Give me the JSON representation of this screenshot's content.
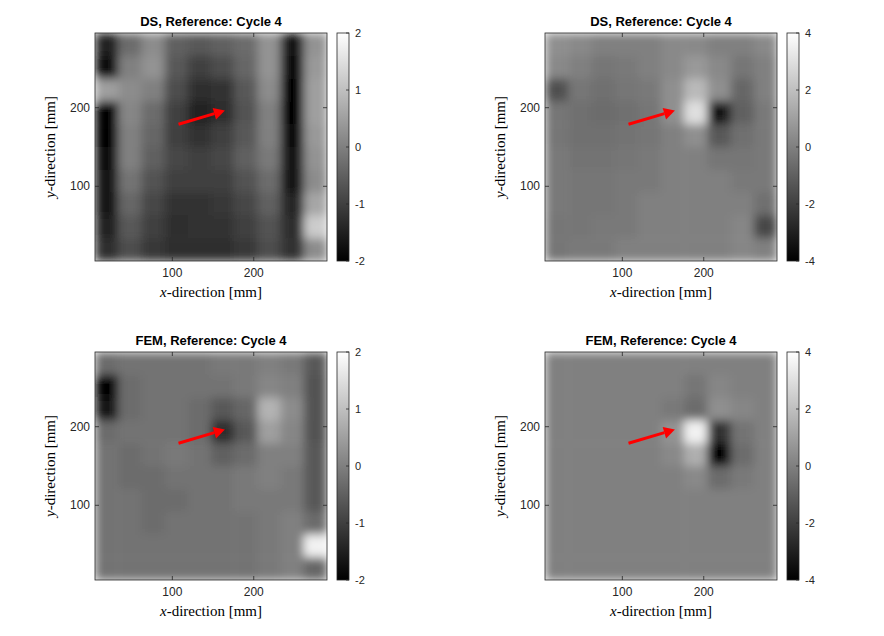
{
  "chart_data": [
    {
      "type": "heatmap",
      "title": "DS, Reference: Cycle 4",
      "x_label": "x-direction [mm]",
      "y_label": "y-direction [mm]",
      "xlim": [
        5,
        290
      ],
      "ylim": [
        5,
        295
      ],
      "xticks": [
        100,
        200
      ],
      "yticks": [
        100,
        200
      ],
      "clim": [
        -2,
        2
      ],
      "cticks": [
        -2,
        -1,
        0,
        1,
        2
      ],
      "cells": [
        [
          -1.5,
          -0.3,
          0.2,
          -0.5,
          -0.6,
          -0.5,
          -0.3,
          0.3,
          -1.6,
          0.3
        ],
        [
          -1.8,
          0,
          0.3,
          -0.6,
          -1,
          -0.8,
          -0.4,
          0.3,
          -1.8,
          0.4
        ],
        [
          0.5,
          0.2,
          0,
          -0.8,
          -1.3,
          -1.2,
          -0.6,
          0.2,
          -1.9,
          0.5
        ],
        [
          -1.9,
          0.1,
          -0.3,
          -1,
          -1.5,
          -1.3,
          -0.7,
          0,
          -1.9,
          0.5
        ],
        [
          -1.9,
          0,
          -0.4,
          -1,
          -1.2,
          -1,
          -0.6,
          0,
          -1.8,
          0.4
        ],
        [
          -1.8,
          0,
          -0.5,
          -0.9,
          -1,
          -0.9,
          -0.5,
          -0.1,
          -1.7,
          0.3
        ],
        [
          -1.7,
          -0.2,
          -0.7,
          -1,
          -1,
          -1,
          -0.7,
          -0.3,
          -1.6,
          0.2
        ],
        [
          -1.6,
          -0.4,
          -0.9,
          -1.2,
          -1.2,
          -1.1,
          -0.9,
          -0.5,
          -1.4,
          0.6
        ],
        [
          -1.5,
          -0.6,
          -1,
          -1.3,
          -1.2,
          -1.2,
          -1,
          -0.7,
          -1.3,
          1.2
        ],
        [
          -1.3,
          -0.8,
          -1.1,
          -1.3,
          -1.3,
          -1.3,
          -1.1,
          -0.8,
          -1.2,
          0.2
        ]
      ]
    },
    {
      "type": "heatmap",
      "title": "DS, Reference: Cycle 4",
      "x_label": "x-direction [mm]",
      "y_label": "y-direction [mm]",
      "xlim": [
        5,
        290
      ],
      "ylim": [
        5,
        295
      ],
      "xticks": [
        100,
        200
      ],
      "yticks": [
        100,
        200
      ],
      "clim": [
        -4,
        4
      ],
      "cticks": [
        -4,
        -2,
        0,
        2,
        4
      ],
      "cells": [
        [
          0.5,
          0.3,
          0,
          0,
          0,
          0.3,
          0.3,
          0,
          0,
          0.3
        ],
        [
          0.3,
          0,
          -0.3,
          -0.2,
          0,
          0.3,
          0.8,
          0.3,
          -0.3,
          0
        ],
        [
          -1.5,
          -0.3,
          -0.5,
          -0.3,
          -0.2,
          0.5,
          1.8,
          0.5,
          -0.8,
          0
        ],
        [
          -0.3,
          -0.5,
          -0.6,
          -0.5,
          -0.3,
          0.5,
          3,
          -3.2,
          -1,
          -0.2
        ],
        [
          -0.3,
          -0.5,
          -0.5,
          -0.4,
          -0.3,
          0,
          0.5,
          -1.2,
          -0.5,
          -0.2
        ],
        [
          -0.2,
          -0.4,
          -0.4,
          -0.3,
          -0.2,
          0,
          0,
          -0.3,
          -0.3,
          -0.2
        ],
        [
          -0.2,
          -0.3,
          -0.3,
          -0.2,
          -0.2,
          0,
          0,
          0,
          -0.2,
          -0.2
        ],
        [
          -0.2,
          -0.3,
          -0.3,
          -0.2,
          0,
          0,
          0,
          0,
          0,
          -0.5
        ],
        [
          -0.3,
          -0.3,
          -0.2,
          -0.2,
          0,
          0,
          0,
          0,
          0.2,
          -1.8
        ],
        [
          -0.3,
          -0.2,
          -0.2,
          0,
          0,
          0,
          0,
          0,
          0.2,
          0
        ]
      ]
    },
    {
      "type": "heatmap",
      "title": "FEM, Reference: Cycle 4",
      "x_label": "x-direction [mm]",
      "y_label": "y-direction [mm]",
      "xlim": [
        5,
        290
      ],
      "ylim": [
        5,
        295
      ],
      "xticks": [
        100,
        200
      ],
      "yticks": [
        100,
        200
      ],
      "clim": [
        -2,
        2
      ],
      "cticks": [
        -2,
        -1,
        0,
        1,
        2
      ],
      "cells": [
        [
          -0.3,
          -0.2,
          -0.2,
          -0.2,
          -0.2,
          -0.1,
          -0.1,
          0,
          -0.1,
          -0.6
        ],
        [
          -2,
          -0.3,
          -0.2,
          -0.2,
          -0.2,
          -0.2,
          -0.1,
          0.1,
          0,
          -0.7
        ],
        [
          -1.6,
          -0.3,
          -0.2,
          -0.2,
          -0.3,
          -0.6,
          -0.4,
          0.8,
          0.2,
          -0.7
        ],
        [
          -0.3,
          -0.2,
          -0.2,
          -0.2,
          -0.3,
          -1.3,
          -0.6,
          0.5,
          0.1,
          -0.7
        ],
        [
          -0.2,
          -0.3,
          -0.2,
          -0.1,
          -0.2,
          -0.5,
          -0.3,
          0,
          0,
          -0.6
        ],
        [
          -0.2,
          -0.3,
          -0.3,
          -0.2,
          -0.2,
          -0.2,
          -0.1,
          0,
          -0.1,
          -0.6
        ],
        [
          -0.2,
          -0.2,
          -0.3,
          -0.3,
          -0.2,
          -0.2,
          -0.1,
          -0.1,
          -0.1,
          -0.6
        ],
        [
          -0.2,
          -0.2,
          -0.3,
          -0.2,
          -0.2,
          -0.2,
          -0.2,
          -0.1,
          0,
          -0.3
        ],
        [
          -0.2,
          -0.2,
          -0.2,
          -0.2,
          -0.2,
          -0.2,
          -0.2,
          -0.1,
          0,
          1.8
        ],
        [
          -0.2,
          -0.2,
          -0.2,
          -0.2,
          -0.2,
          -0.2,
          -0.2,
          -0.1,
          0,
          -0.4
        ]
      ]
    },
    {
      "type": "heatmap",
      "title": "FEM, Reference: Cycle 4",
      "x_label": "x-direction [mm]",
      "y_label": "y-direction [mm]",
      "xlim": [
        5,
        290
      ],
      "ylim": [
        5,
        295
      ],
      "xticks": [
        100,
        200
      ],
      "yticks": [
        100,
        200
      ],
      "clim": [
        -4,
        4
      ],
      "cticks": [
        -4,
        -2,
        0,
        2,
        4
      ],
      "cells": [
        [
          0,
          0,
          0,
          0,
          0,
          0,
          0,
          0,
          0,
          0
        ],
        [
          0,
          0,
          0,
          0,
          0,
          0,
          -0.3,
          0.2,
          0,
          0
        ],
        [
          0,
          0,
          0,
          0,
          0,
          -0.2,
          -0.6,
          0.5,
          0.2,
          0
        ],
        [
          0,
          0,
          0,
          0,
          0,
          0.6,
          3.6,
          -2.5,
          -0.4,
          0
        ],
        [
          0,
          0,
          0,
          0,
          0,
          0.3,
          1.5,
          -3.8,
          -0.6,
          0
        ],
        [
          0,
          0,
          0,
          0,
          0,
          0,
          0.3,
          -0.6,
          -0.2,
          0
        ],
        [
          0,
          0,
          0,
          0,
          0,
          0,
          0,
          0,
          0,
          0
        ],
        [
          0,
          0,
          0,
          0,
          0,
          0,
          0,
          0,
          0,
          0
        ],
        [
          0,
          0,
          0,
          0,
          0,
          0,
          0,
          0,
          0,
          0
        ],
        [
          0,
          0,
          0,
          0,
          0,
          0,
          0,
          0,
          0,
          0
        ]
      ]
    }
  ]
}
